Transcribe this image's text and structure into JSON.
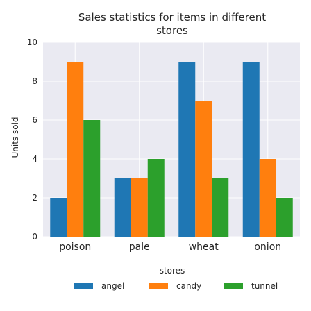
{
  "chart_data": {
    "type": "bar",
    "title_lines": [
      "Sales statistics for items in different",
      "stores"
    ],
    "xlabel": "",
    "ylabel": "Units sold",
    "categories": [
      "poison",
      "pale",
      "wheat",
      "onion"
    ],
    "series": [
      {
        "name": "angel",
        "color": "#1f77b4",
        "values": [
          2,
          3,
          9,
          9
        ]
      },
      {
        "name": "candy",
        "color": "#ff7f0e",
        "values": [
          9,
          3,
          7,
          4
        ]
      },
      {
        "name": "tunnel",
        "color": "#2ca02c",
        "values": [
          6,
          4,
          3,
          2
        ]
      }
    ],
    "ylim": [
      0,
      10
    ],
    "yticks": [
      0,
      2,
      4,
      6,
      8,
      10
    ],
    "grid": true,
    "legend": {
      "title": "stores",
      "placement": "bottom"
    },
    "background_color": "#eaeaf2"
  }
}
